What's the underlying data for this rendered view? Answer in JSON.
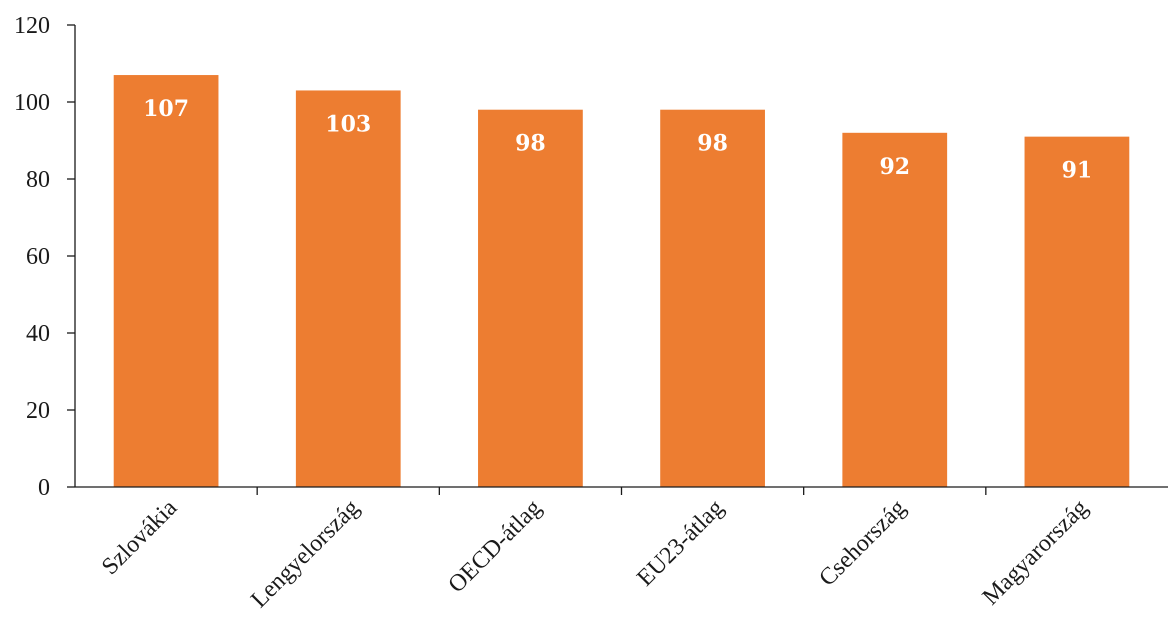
{
  "chart_data": {
    "type": "bar",
    "title": "",
    "xlabel": "",
    "ylabel": "",
    "categories": [
      "Szlovákia",
      "Lengyelország",
      "OECD-átlag",
      "EU23-átlag",
      "Csehország",
      "Magyarország"
    ],
    "values": [
      107,
      103,
      98,
      98,
      92,
      91
    ],
    "data_labels": [
      "107",
      "103",
      "98",
      "98",
      "92",
      "91"
    ],
    "ylim": [
      0,
      120
    ],
    "yticks": [
      0,
      20,
      40,
      60,
      80,
      100,
      120
    ],
    "ytick_labels": [
      "0",
      "20",
      "40",
      "60",
      "80",
      "100",
      "120"
    ],
    "grid": false,
    "legend": "none",
    "bar_color": "#ED7D31",
    "label_color": "#FFFFFF"
  }
}
